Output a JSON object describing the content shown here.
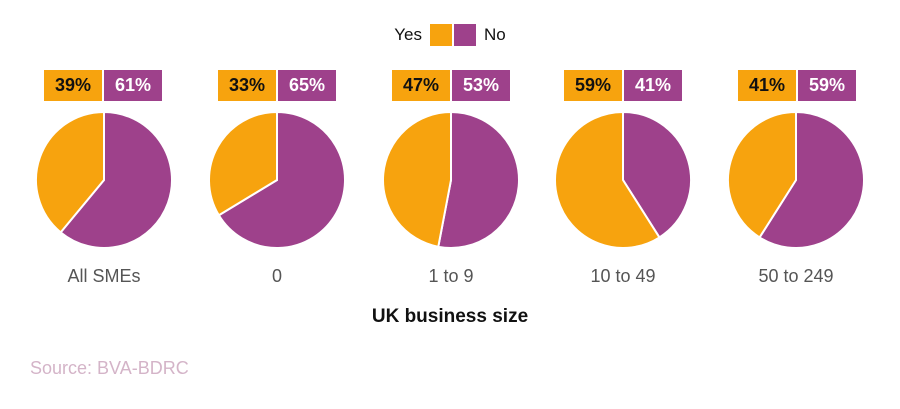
{
  "legend": {
    "yes_label": "Yes",
    "no_label": "No"
  },
  "colors": {
    "yes": "#F7A30E",
    "no": "#9E418B"
  },
  "chart_data": {
    "type": "pie",
    "title": "",
    "xlabel": "UK business size",
    "series_names": [
      "Yes",
      "No"
    ],
    "categories": [
      "All SMEs",
      "0",
      "1 to 9",
      "10 to 49",
      "50 to 249"
    ],
    "values": [
      {
        "yes": 39,
        "no": 61
      },
      {
        "yes": 33,
        "no": 65
      },
      {
        "yes": 47,
        "no": 53
      },
      {
        "yes": 59,
        "no": 41
      },
      {
        "yes": 41,
        "no": 59
      }
    ],
    "labels": [
      {
        "yes": "39%",
        "no": "61%"
      },
      {
        "yes": "33%",
        "no": "65%"
      },
      {
        "yes": "47%",
        "no": "53%"
      },
      {
        "yes": "59%",
        "no": "41%"
      },
      {
        "yes": "41%",
        "no": "59%"
      }
    ]
  },
  "source": "Source: BVA-BDRC"
}
